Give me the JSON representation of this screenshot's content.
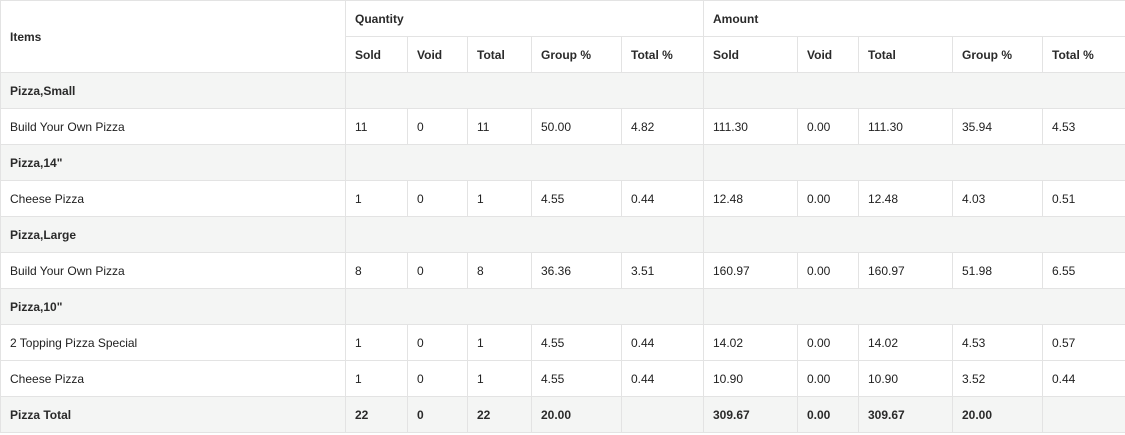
{
  "header": {
    "items_label": "Items",
    "quantity_label": "Quantity",
    "amount_label": "Amount",
    "sub_columns": [
      "Sold",
      "Void",
      "Total",
      "Group %",
      "Total %"
    ]
  },
  "rows": [
    {
      "type": "group",
      "label": "Pizza,Small"
    },
    {
      "type": "item",
      "label": "Build Your Own Pizza",
      "qty": [
        "11",
        "0",
        "11",
        "50.00",
        "4.82"
      ],
      "amt": [
        "111.30",
        "0.00",
        "111.30",
        "35.94",
        "4.53"
      ]
    },
    {
      "type": "group",
      "label": "Pizza,14\""
    },
    {
      "type": "item",
      "label": "Cheese Pizza",
      "qty": [
        "1",
        "0",
        "1",
        "4.55",
        "0.44"
      ],
      "amt": [
        "12.48",
        "0.00",
        "12.48",
        "4.03",
        "0.51"
      ]
    },
    {
      "type": "group",
      "label": "Pizza,Large"
    },
    {
      "type": "item",
      "label": "Build Your Own Pizza",
      "qty": [
        "8",
        "0",
        "8",
        "36.36",
        "3.51"
      ],
      "amt": [
        "160.97",
        "0.00",
        "160.97",
        "51.98",
        "6.55"
      ]
    },
    {
      "type": "group",
      "label": "Pizza,10\""
    },
    {
      "type": "item",
      "label": "2 Topping Pizza Special",
      "qty": [
        "1",
        "0",
        "1",
        "4.55",
        "0.44"
      ],
      "amt": [
        "14.02",
        "0.00",
        "14.02",
        "4.53",
        "0.57"
      ]
    },
    {
      "type": "item",
      "label": "Cheese Pizza",
      "qty": [
        "1",
        "0",
        "1",
        "4.55",
        "0.44"
      ],
      "amt": [
        "10.90",
        "0.00",
        "10.90",
        "3.52",
        "0.44"
      ]
    },
    {
      "type": "total",
      "label": "Pizza Total",
      "qty": [
        "22",
        "0",
        "22",
        "20.00",
        ""
      ],
      "amt": [
        "309.67",
        "0.00",
        "309.67",
        "20.00",
        ""
      ]
    }
  ]
}
